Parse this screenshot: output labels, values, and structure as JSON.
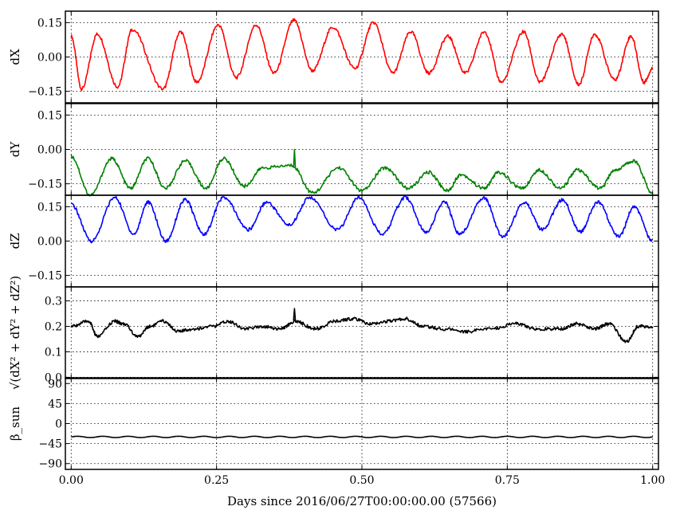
{
  "chart_data": {
    "type": "line",
    "layout": "stacked-subplots",
    "shared_x": {
      "xlabel": "Days since 2016/06/27T00:00:00.00 (57566)",
      "xlim": [
        -0.01,
        1.01
      ],
      "ticks": [
        0.0,
        0.25,
        0.5,
        0.75,
        1.0
      ],
      "tick_labels": [
        "0.00",
        "0.25",
        "0.50",
        "0.75",
        "1.00"
      ]
    },
    "grid": "dotted",
    "panels": [
      {
        "name": "dX",
        "ylabel": "dX",
        "ylim": [
          -0.2,
          0.2
        ],
        "yticks": [
          0.15,
          0.0,
          -0.15
        ],
        "ytick_labels": [
          "0.15",
          "0.00",
          "−0.15"
        ],
        "color": "#ff0000",
        "series": {
          "x": [
            0.0,
            0.018,
            0.045,
            0.08,
            0.105,
            0.158,
            0.188,
            0.216,
            0.253,
            0.284,
            0.318,
            0.349,
            0.383,
            0.415,
            0.45,
            0.488,
            0.52,
            0.553,
            0.584,
            0.615,
            0.648,
            0.678,
            0.711,
            0.74,
            0.778,
            0.806,
            0.844,
            0.873,
            0.9,
            0.935,
            0.963,
            0.985,
            1.0
          ],
          "y": [
            0.09,
            -0.14,
            0.1,
            -0.13,
            0.12,
            -0.14,
            0.11,
            -0.11,
            0.14,
            -0.09,
            0.14,
            -0.07,
            0.16,
            -0.06,
            0.13,
            -0.05,
            0.15,
            -0.07,
            0.11,
            -0.07,
            0.09,
            -0.07,
            0.11,
            -0.11,
            0.11,
            -0.11,
            0.1,
            -0.12,
            0.1,
            -0.1,
            0.09,
            -0.11,
            -0.05
          ]
        }
      },
      {
        "name": "dY",
        "ylabel": "dY",
        "ylim": [
          -0.2,
          0.2
        ],
        "yticks": [
          0.15,
          0.0,
          -0.15
        ],
        "ytick_labels": [
          "0.15",
          "0.00",
          "−0.15"
        ],
        "color": "#008000",
        "series": {
          "x": [
            0.0,
            0.033,
            0.07,
            0.102,
            0.132,
            0.162,
            0.196,
            0.232,
            0.262,
            0.298,
            0.33,
            0.38,
            0.415,
            0.46,
            0.5,
            0.54,
            0.58,
            0.615,
            0.647,
            0.67,
            0.71,
            0.735,
            0.775,
            0.805,
            0.842,
            0.87,
            0.91,
            0.935,
            0.968,
            1.0
          ],
          "y": [
            -0.03,
            -0.2,
            -0.04,
            -0.17,
            -0.04,
            -0.17,
            -0.05,
            -0.17,
            -0.04,
            -0.16,
            -0.08,
            -0.07,
            -0.19,
            -0.08,
            -0.18,
            -0.08,
            -0.17,
            -0.1,
            -0.18,
            -0.11,
            -0.17,
            -0.1,
            -0.17,
            -0.09,
            -0.17,
            -0.09,
            -0.17,
            -0.09,
            -0.05,
            -0.19
          ]
        },
        "spikes": [
          {
            "x": 0.384,
            "y": 0.0
          }
        ]
      },
      {
        "name": "dZ",
        "ylabel": "dZ",
        "ylim": [
          -0.2,
          0.2
        ],
        "yticks": [
          0.15,
          0.0,
          -0.15
        ],
        "ytick_labels": [
          "0.15",
          "0.00",
          "−0.15"
        ],
        "color": "#0000ff",
        "series": {
          "x": [
            0.0,
            0.035,
            0.075,
            0.108,
            0.132,
            0.163,
            0.196,
            0.228,
            0.262,
            0.305,
            0.336,
            0.375,
            0.41,
            0.458,
            0.495,
            0.535,
            0.575,
            0.61,
            0.642,
            0.668,
            0.71,
            0.742,
            0.78,
            0.81,
            0.845,
            0.876,
            0.905,
            0.942,
            0.968,
            1.0
          ],
          "y": [
            0.16,
            0.0,
            0.19,
            0.03,
            0.17,
            0.0,
            0.18,
            0.03,
            0.19,
            0.05,
            0.17,
            0.07,
            0.19,
            0.05,
            0.19,
            0.03,
            0.19,
            0.04,
            0.17,
            0.03,
            0.19,
            0.02,
            0.17,
            0.05,
            0.18,
            0.04,
            0.17,
            0.02,
            0.15,
            0.0
          ]
        }
      },
      {
        "name": "magnitude",
        "ylabel": "√(dX² + dY² + dZ²)",
        "ylim": [
          -0.005,
          0.355
        ],
        "yticks": [
          0.3,
          0.2,
          0.1,
          0.0
        ],
        "ytick_labels": [
          "0.3",
          "0.2",
          "0.1",
          "0.0"
        ],
        "color": "#000000",
        "series": {
          "x": [
            0.0,
            0.03,
            0.045,
            0.075,
            0.09,
            0.115,
            0.135,
            0.158,
            0.185,
            0.21,
            0.245,
            0.27,
            0.3,
            0.33,
            0.36,
            0.385,
            0.42,
            0.455,
            0.485,
            0.515,
            0.545,
            0.575,
            0.605,
            0.64,
            0.68,
            0.72,
            0.765,
            0.8,
            0.84,
            0.87,
            0.9,
            0.925,
            0.955,
            0.975,
            1.0
          ],
          "y": [
            0.2,
            0.22,
            0.16,
            0.22,
            0.21,
            0.16,
            0.2,
            0.22,
            0.18,
            0.19,
            0.2,
            0.22,
            0.19,
            0.2,
            0.19,
            0.22,
            0.19,
            0.22,
            0.23,
            0.21,
            0.22,
            0.23,
            0.2,
            0.19,
            0.18,
            0.19,
            0.21,
            0.19,
            0.19,
            0.21,
            0.19,
            0.21,
            0.14,
            0.2,
            0.2
          ]
        },
        "spikes": [
          {
            "x": 0.384,
            "y": 0.27
          }
        ]
      },
      {
        "name": "beta_sun",
        "ylabel": "β_sun",
        "ylim": [
          -103,
          103
        ],
        "yticks": [
          90,
          45,
          0,
          -45,
          -90
        ],
        "ytick_labels": [
          "90",
          "45",
          "0",
          "−45",
          "−90"
        ],
        "color": "#000000",
        "series": {
          "mean": -30,
          "amplitude": 1.5,
          "cycles": 23
        }
      }
    ]
  }
}
